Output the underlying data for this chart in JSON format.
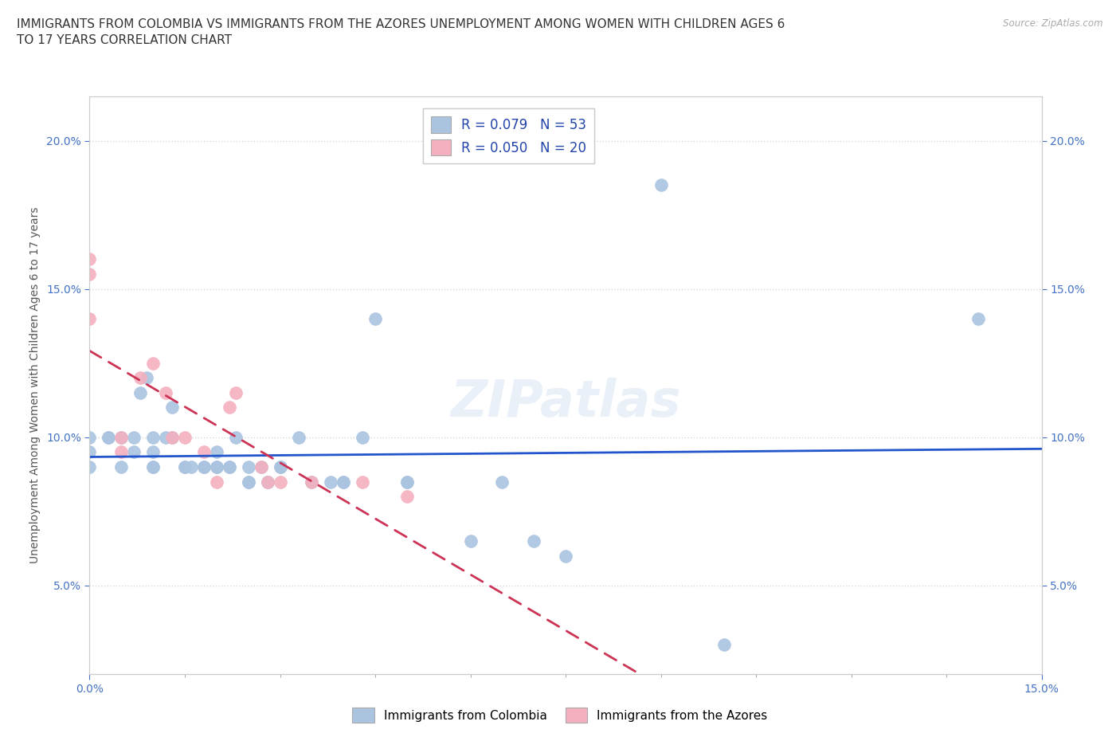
{
  "title": "IMMIGRANTS FROM COLOMBIA VS IMMIGRANTS FROM THE AZORES UNEMPLOYMENT AMONG WOMEN WITH CHILDREN AGES 6\nTO 17 YEARS CORRELATION CHART",
  "source": "Source: ZipAtlas.com",
  "xlim": [
    0.0,
    0.15
  ],
  "ylim": [
    0.02,
    0.215
  ],
  "ylabel": "Unemployment Among Women with Children Ages 6 to 17 years",
  "colombia_color": "#aac4e0",
  "azores_color": "#f4b0be",
  "colombia_line_color": "#2255cc",
  "azores_line_color": "#cc3355",
  "legend_label_colombia": "R = 0.079   N = 53",
  "legend_label_azores": "R = 0.050   N = 20",
  "bottom_legend_colombia": "Immigrants from Colombia",
  "bottom_legend_azores": "Immigrants from the Azores",
  "colombia_x": [
    0.0,
    0.0,
    0.0,
    0.003,
    0.003,
    0.005,
    0.005,
    0.007,
    0.007,
    0.008,
    0.009,
    0.01,
    0.01,
    0.01,
    0.01,
    0.012,
    0.013,
    0.013,
    0.015,
    0.015,
    0.016,
    0.018,
    0.018,
    0.02,
    0.02,
    0.02,
    0.022,
    0.022,
    0.023,
    0.025,
    0.025,
    0.025,
    0.027,
    0.028,
    0.028,
    0.03,
    0.03,
    0.033,
    0.035,
    0.038,
    0.04,
    0.04,
    0.043,
    0.045,
    0.05,
    0.05,
    0.06,
    0.065,
    0.07,
    0.075,
    0.09,
    0.1,
    0.14
  ],
  "colombia_y": [
    0.1,
    0.095,
    0.09,
    0.1,
    0.1,
    0.1,
    0.09,
    0.1,
    0.095,
    0.115,
    0.12,
    0.1,
    0.095,
    0.09,
    0.09,
    0.1,
    0.11,
    0.1,
    0.09,
    0.09,
    0.09,
    0.09,
    0.09,
    0.09,
    0.09,
    0.095,
    0.09,
    0.09,
    0.1,
    0.09,
    0.085,
    0.085,
    0.09,
    0.085,
    0.085,
    0.09,
    0.09,
    0.1,
    0.085,
    0.085,
    0.085,
    0.085,
    0.1,
    0.14,
    0.085,
    0.085,
    0.065,
    0.085,
    0.065,
    0.06,
    0.185,
    0.03,
    0.14
  ],
  "azores_x": [
    0.0,
    0.0,
    0.0,
    0.005,
    0.005,
    0.008,
    0.01,
    0.012,
    0.013,
    0.015,
    0.018,
    0.02,
    0.022,
    0.023,
    0.027,
    0.028,
    0.03,
    0.035,
    0.043,
    0.05
  ],
  "azores_y": [
    0.16,
    0.155,
    0.14,
    0.1,
    0.095,
    0.12,
    0.125,
    0.115,
    0.1,
    0.1,
    0.095,
    0.085,
    0.11,
    0.115,
    0.09,
    0.085,
    0.085,
    0.085,
    0.085,
    0.08
  ],
  "watermark": "ZIPatlas",
  "grid_color": "#cccccc",
  "background_color": "#ffffff",
  "title_fontsize": 11,
  "axis_fontsize": 10,
  "tick_fontsize": 10,
  "legend_fontsize": 12,
  "marker_size": 130
}
